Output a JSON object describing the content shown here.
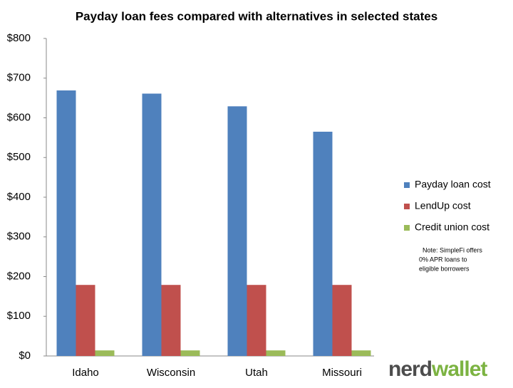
{
  "chart_data": {
    "type": "bar",
    "title": "Payday loan fees compared with alternatives in selected states",
    "categories": [
      "Idaho",
      "Wisconsin",
      "Utah",
      "Missouri"
    ],
    "series": [
      {
        "name": "Payday loan cost",
        "color": "#4f81bd",
        "values": [
          669,
          661,
          629,
          565
        ]
      },
      {
        "name": "LendUp cost",
        "color": "#c0504d",
        "values": [
          179,
          179,
          179,
          179
        ]
      },
      {
        "name": "Credit union cost",
        "color": "#9bbb59",
        "values": [
          14,
          14,
          14,
          14
        ]
      }
    ],
    "ylim": [
      0,
      800
    ],
    "yticks": [
      {
        "value": 0,
        "label": "$0"
      },
      {
        "value": 100,
        "label": "$100"
      },
      {
        "value": 200,
        "label": "$200"
      },
      {
        "value": 300,
        "label": "$300"
      },
      {
        "value": 400,
        "label": "$400"
      },
      {
        "value": 500,
        "label": "$500"
      },
      {
        "value": 600,
        "label": "$600"
      },
      {
        "value": 700,
        "label": "$700"
      },
      {
        "value": 800,
        "label": "$800"
      }
    ],
    "grid": false,
    "legend": "right",
    "annotation": [
      "Note: SimpleFi offers",
      "0% APR loans to",
      "eligible borrowers"
    ],
    "logo": [
      "nerd",
      "wallet"
    ]
  }
}
